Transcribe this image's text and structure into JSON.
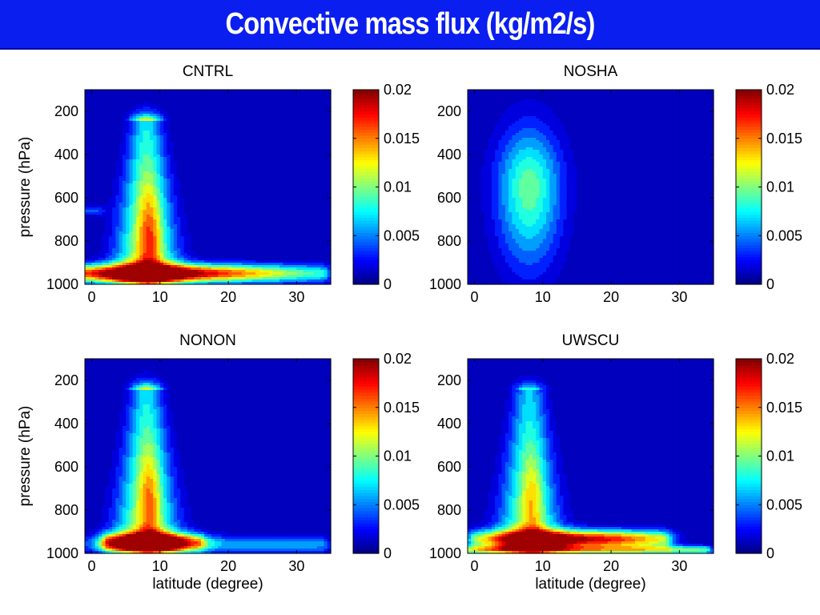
{
  "slide": {
    "title": "Convective mass flux (kg/m2/s)"
  },
  "chart_data": [
    {
      "type": "heatmap",
      "title": "CNTRL",
      "xlabel": "",
      "ylabel": "pressure (hPa)",
      "xlim": [
        -1,
        35
      ],
      "ylim": [
        100,
        1000
      ],
      "y_reversed": true,
      "x_ticks": [
        0,
        10,
        20,
        30
      ],
      "y_ticks": [
        200,
        400,
        600,
        800,
        1000
      ],
      "colorbar": {
        "range": [
          0,
          0.02
        ],
        "ticks": [
          "0",
          "0.005",
          "0.01",
          "0.015",
          "0.02"
        ],
        "colormap": "jet"
      },
      "features": [
        {
          "kind": "plume",
          "lat": 8,
          "p_bottom": 980,
          "p_top": 240,
          "peak": 0.013
        },
        {
          "kind": "plume_core",
          "lat": 8.5,
          "p_center": 780,
          "p_half_height": 170,
          "lat_half_width": 1.2,
          "peak": 0.0055
        },
        {
          "kind": "shallow_layer",
          "p": 950,
          "lat_from": -1,
          "lat_to": 34,
          "peak_lat": 10,
          "peak": 0.02
        },
        {
          "kind": "surface_edge",
          "p": 660,
          "lat_from": -1,
          "lat_to": 1,
          "peak": 0.004
        }
      ]
    },
    {
      "type": "heatmap",
      "title": "NOSHA",
      "xlabel": "",
      "ylabel": "",
      "xlim": [
        -1,
        35
      ],
      "ylim": [
        100,
        1000
      ],
      "y_reversed": true,
      "x_ticks": [
        0,
        10,
        20,
        30
      ],
      "y_ticks": [
        200,
        400,
        600,
        800,
        1000
      ],
      "colorbar": {
        "range": [
          0,
          0.02
        ],
        "ticks": [
          "0",
          "0.005",
          "0.01",
          "0.015",
          "0.02"
        ],
        "colormap": "jet"
      },
      "features": [
        {
          "kind": "broad_cell",
          "lat": 8,
          "p_center": 550,
          "p_bottom": 970,
          "p_top": 230,
          "lat_half_width": 5.5,
          "peak": 0.0095
        }
      ]
    },
    {
      "type": "heatmap",
      "title": "NONON",
      "xlabel": "latitude (degree)",
      "ylabel": "pressure (hPa)",
      "xlim": [
        -1,
        35
      ],
      "ylim": [
        100,
        1000
      ],
      "y_reversed": true,
      "x_ticks": [
        0,
        10,
        20,
        30
      ],
      "y_ticks": [
        200,
        400,
        600,
        800,
        1000
      ],
      "colorbar": {
        "range": [
          0,
          0.02
        ],
        "ticks": [
          "0",
          "0.005",
          "0.01",
          "0.015",
          "0.02"
        ],
        "colormap": "jet"
      },
      "features": [
        {
          "kind": "plume",
          "lat": 8,
          "p_bottom": 980,
          "p_top": 240,
          "peak": 0.0125
        },
        {
          "kind": "plume_core",
          "lat": 8.5,
          "p_center": 760,
          "p_half_height": 170,
          "lat_half_width": 1.1,
          "peak": 0.005
        },
        {
          "kind": "shallow_layer",
          "p": 950,
          "lat_from": 2,
          "lat_to": 16,
          "peak_lat": 8,
          "peak": 0.019
        },
        {
          "kind": "shallow_layer",
          "p": 960,
          "lat_from": -1,
          "lat_to": 34,
          "peak_lat": 26,
          "peak": 0.006
        }
      ]
    },
    {
      "type": "heatmap",
      "title": "UWSCU",
      "xlabel": "latitude (degree)",
      "ylabel": "",
      "xlim": [
        -1,
        35
      ],
      "ylim": [
        100,
        1000
      ],
      "y_reversed": true,
      "x_ticks": [
        0,
        10,
        20,
        30
      ],
      "y_ticks": [
        200,
        400,
        600,
        800,
        1000
      ],
      "colorbar": {
        "range": [
          0,
          0.02
        ],
        "ticks": [
          "0",
          "0.005",
          "0.01",
          "0.015",
          "0.02"
        ],
        "colormap": "jet"
      },
      "features": [
        {
          "kind": "plume",
          "lat": 8,
          "p_bottom": 980,
          "p_top": 250,
          "peak": 0.0115
        },
        {
          "kind": "plume_core",
          "lat": 8.5,
          "p_center": 760,
          "p_half_height": 160,
          "lat_half_width": 1.1,
          "peak": 0.004
        },
        {
          "kind": "shallow_layer",
          "p": 935,
          "lat_from": 0,
          "lat_to": 28,
          "peak_lat": 15,
          "peak": 0.019
        },
        {
          "kind": "surface_edge",
          "p": 985,
          "lat_from": -1,
          "lat_to": 34,
          "peak": 0.01
        }
      ]
    }
  ]
}
